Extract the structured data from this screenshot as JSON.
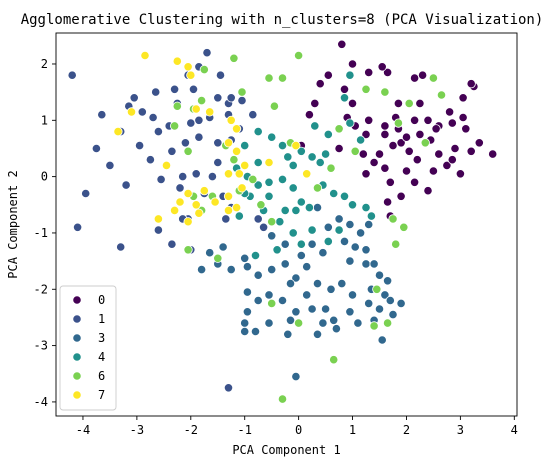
{
  "chart_data": {
    "type": "scatter",
    "title": "Agglomerative Clustering with n_clusters=8 (PCA Visualization)",
    "xlabel": "PCA Component 1",
    "ylabel": "PCA Component 2",
    "xlim": [
      -4.5,
      4.05
    ],
    "ylim": [
      -4.25,
      2.55
    ],
    "xticks": [
      -4,
      -3,
      -2,
      -1,
      0,
      1,
      2,
      3,
      4
    ],
    "yticks": [
      -4,
      -3,
      -2,
      -1,
      0,
      1,
      2
    ],
    "grid": false,
    "legend_position": "lower-left",
    "series": [
      {
        "name": "0",
        "color": "#440154",
        "points": [
          [
            0.8,
            2.35
          ],
          [
            1.0,
            2.0
          ],
          [
            1.3,
            1.85
          ],
          [
            0.55,
            1.8
          ],
          [
            1.65,
            1.85
          ],
          [
            2.15,
            1.75
          ],
          [
            2.25,
            1.3
          ],
          [
            1.85,
            1.3
          ],
          [
            2.4,
            1.0
          ],
          [
            2.15,
            1.0
          ],
          [
            2.8,
            1.15
          ],
          [
            3.05,
            1.05
          ],
          [
            3.25,
            1.6
          ],
          [
            3.2,
            1.65
          ],
          [
            3.05,
            1.4
          ],
          [
            2.85,
            0.95
          ],
          [
            3.1,
            0.85
          ],
          [
            2.6,
            0.9
          ],
          [
            1.3,
            1.0
          ],
          [
            1.05,
            0.9
          ],
          [
            0.9,
            1.05
          ],
          [
            1.25,
            0.75
          ],
          [
            1.6,
            0.75
          ],
          [
            1.85,
            0.85
          ],
          [
            1.75,
            0.55
          ],
          [
            1.5,
            0.4
          ],
          [
            1.6,
            0.15
          ],
          [
            1.9,
            0.6
          ],
          [
            2.05,
            0.45
          ],
          [
            2.25,
            0.75
          ],
          [
            2.45,
            0.65
          ],
          [
            2.55,
            0.85
          ],
          [
            2.6,
            0.4
          ],
          [
            2.9,
            0.5
          ],
          [
            3.2,
            0.45
          ],
          [
            3.35,
            0.6
          ],
          [
            3.6,
            0.4
          ],
          [
            2.2,
            0.3
          ],
          [
            2.0,
            0.1
          ],
          [
            2.15,
            -0.1
          ],
          [
            1.9,
            -0.35
          ],
          [
            1.7,
            -0.1
          ],
          [
            1.65,
            -0.45
          ],
          [
            1.7,
            -0.7
          ],
          [
            2.4,
            -0.25
          ],
          [
            2.5,
            0.1
          ],
          [
            2.75,
            0.2
          ],
          [
            3.0,
            0.05
          ],
          [
            2.85,
            0.3
          ],
          [
            1.2,
            0.4
          ],
          [
            1.4,
            0.25
          ],
          [
            1.25,
            0.05
          ],
          [
            1.0,
            1.3
          ],
          [
            0.3,
            1.3
          ],
          [
            0.4,
            1.65
          ],
          [
            0.2,
            1.1
          ],
          [
            0.85,
            1.55
          ],
          [
            1.55,
            1.95
          ],
          [
            0.05,
            0.55
          ],
          [
            1.6,
            0.9
          ],
          [
            2.3,
            1.8
          ],
          [
            1.8,
            1.05
          ],
          [
            2.0,
            0.7
          ],
          [
            0.75,
            0.5
          ]
        ]
      },
      {
        "name": "1",
        "color": "#3b528b",
        "points": [
          [
            -4.2,
            1.8
          ],
          [
            -3.65,
            1.1
          ],
          [
            -3.75,
            0.5
          ],
          [
            -3.5,
            0.2
          ],
          [
            -3.2,
            -0.15
          ],
          [
            -3.3,
            0.8
          ],
          [
            -3.05,
            1.4
          ],
          [
            -2.9,
            1.15
          ],
          [
            -2.7,
            1.05
          ],
          [
            -2.65,
            1.5
          ],
          [
            -2.3,
            1.55
          ],
          [
            -2.25,
            1.3
          ],
          [
            -1.95,
            1.55
          ],
          [
            -1.85,
            1.95
          ],
          [
            -1.7,
            2.2
          ],
          [
            -1.45,
            1.8
          ],
          [
            -1.5,
            1.4
          ],
          [
            -1.3,
            1.3
          ],
          [
            -1.25,
            1.4
          ],
          [
            -1.05,
            1.35
          ],
          [
            -1.3,
            1.1
          ],
          [
            -1.65,
            1.05
          ],
          [
            -1.85,
            1.0
          ],
          [
            -2.0,
            0.95
          ],
          [
            -2.4,
            0.9
          ],
          [
            -2.6,
            0.8
          ],
          [
            -2.1,
            0.6
          ],
          [
            -1.85,
            0.7
          ],
          [
            -1.5,
            0.6
          ],
          [
            -1.25,
            0.65
          ],
          [
            -1.1,
            0.85
          ],
          [
            -1.5,
            0.25
          ],
          [
            -1.6,
            0.0
          ],
          [
            -1.9,
            0.05
          ],
          [
            -2.15,
            0.0
          ],
          [
            -2.2,
            -0.2
          ],
          [
            -2.55,
            -0.05
          ],
          [
            -2.75,
            0.3
          ],
          [
            -2.35,
            0.45
          ],
          [
            -1.75,
            -0.3
          ],
          [
            -1.4,
            -0.35
          ],
          [
            -1.25,
            -0.55
          ],
          [
            -1.35,
            -0.75
          ],
          [
            -2.05,
            -0.75
          ],
          [
            -2.15,
            -0.75
          ],
          [
            -2.6,
            -0.95
          ],
          [
            -3.3,
            -1.25
          ],
          [
            -2.35,
            -1.2
          ],
          [
            -2.0,
            -1.3
          ],
          [
            -4.1,
            -0.9
          ],
          [
            -3.95,
            -0.3
          ],
          [
            -1.3,
            -3.75
          ],
          [
            -0.65,
            -0.9
          ],
          [
            -0.75,
            -0.75
          ],
          [
            -1.55,
            -0.45
          ],
          [
            -2.05,
            1.8
          ],
          [
            -1.2,
            0.3
          ],
          [
            -0.85,
            1.1
          ],
          [
            -2.95,
            0.55
          ],
          [
            -3.15,
            1.25
          ]
        ]
      },
      {
        "name": "3",
        "color": "#31688e",
        "points": [
          [
            -1.0,
            -1.45
          ],
          [
            -0.5,
            -1.05
          ],
          [
            -0.25,
            -1.2
          ],
          [
            0.05,
            -1.4
          ],
          [
            0.25,
            -1.2
          ],
          [
            0.45,
            -1.35
          ],
          [
            0.85,
            -1.15
          ],
          [
            1.15,
            -1.0
          ],
          [
            1.3,
            -0.85
          ],
          [
            1.05,
            -1.25
          ],
          [
            0.95,
            -1.5
          ],
          [
            1.25,
            -1.55
          ],
          [
            1.4,
            -1.55
          ],
          [
            1.5,
            -1.75
          ],
          [
            1.65,
            -1.85
          ],
          [
            1.35,
            -2.0
          ],
          [
            1.6,
            -2.1
          ],
          [
            1.5,
            -2.35
          ],
          [
            1.3,
            -2.25
          ],
          [
            1.4,
            -2.55
          ],
          [
            1.75,
            -2.45
          ],
          [
            1.9,
            -2.25
          ],
          [
            1.7,
            -2.2
          ],
          [
            1.0,
            -2.1
          ],
          [
            0.8,
            -1.9
          ],
          [
            0.6,
            -2.0
          ],
          [
            0.35,
            -1.9
          ],
          [
            0.15,
            -2.1
          ],
          [
            -0.05,
            -1.8
          ],
          [
            -0.25,
            -1.55
          ],
          [
            -0.5,
            -1.65
          ],
          [
            -0.75,
            -1.75
          ],
          [
            -0.95,
            -1.6
          ],
          [
            -1.25,
            -1.65
          ],
          [
            -1.5,
            -1.55
          ],
          [
            -1.65,
            -1.35
          ],
          [
            -1.4,
            -1.25
          ],
          [
            -0.95,
            -2.05
          ],
          [
            -0.75,
            -2.2
          ],
          [
            -0.55,
            -2.1
          ],
          [
            -0.3,
            -2.2
          ],
          [
            -0.05,
            -2.4
          ],
          [
            0.25,
            -2.35
          ],
          [
            0.5,
            -2.35
          ],
          [
            0.65,
            -2.55
          ],
          [
            0.95,
            -2.4
          ],
          [
            1.1,
            -2.6
          ],
          [
            0.45,
            -2.6
          ],
          [
            -0.15,
            -2.55
          ],
          [
            -0.2,
            -2.8
          ],
          [
            -0.55,
            -2.6
          ],
          [
            -0.8,
            -2.75
          ],
          [
            -1.0,
            -2.6
          ],
          [
            -1.0,
            -2.75
          ],
          [
            -0.05,
            -3.55
          ],
          [
            -0.95,
            -2.4
          ],
          [
            -1.8,
            -1.65
          ],
          [
            0.35,
            -0.55
          ],
          [
            0.55,
            -0.9
          ],
          [
            0.75,
            -0.75
          ],
          [
            0.95,
            -0.85
          ],
          [
            1.25,
            -1.3
          ],
          [
            0.15,
            -1.6
          ],
          [
            -0.15,
            -1.9
          ],
          [
            0.35,
            -2.8
          ],
          [
            1.55,
            -2.9
          ],
          [
            0.7,
            -2.7
          ]
        ]
      },
      {
        "name": "4",
        "color": "#21918c",
        "points": [
          [
            0.3,
            0.9
          ],
          [
            0.55,
            0.75
          ],
          [
            0.5,
            0.4
          ],
          [
            0.4,
            0.25
          ],
          [
            0.25,
            0.35
          ],
          [
            0.05,
            0.45
          ],
          [
            -0.1,
            0.2
          ],
          [
            -0.2,
            0.35
          ],
          [
            -0.3,
            0.55
          ],
          [
            -0.5,
            0.7
          ],
          [
            -0.75,
            0.8
          ],
          [
            -1.0,
            0.55
          ],
          [
            -0.75,
            0.25
          ],
          [
            -0.95,
            0.0
          ],
          [
            -0.75,
            -0.15
          ],
          [
            -0.55,
            -0.1
          ],
          [
            -0.3,
            -0.05
          ],
          [
            -0.1,
            -0.2
          ],
          [
            0.05,
            -0.45
          ],
          [
            -0.05,
            -0.6
          ],
          [
            -0.25,
            -0.6
          ],
          [
            -0.55,
            -0.35
          ],
          [
            -0.9,
            -0.35
          ],
          [
            -0.4,
            -1.3
          ],
          [
            -0.8,
            -1.4
          ],
          [
            0.2,
            -0.55
          ],
          [
            0.45,
            -0.15
          ],
          [
            0.65,
            -0.3
          ],
          [
            0.85,
            -0.35
          ],
          [
            1.0,
            -0.5
          ],
          [
            1.25,
            -0.55
          ],
          [
            1.35,
            -0.7
          ],
          [
            0.75,
            -0.95
          ],
          [
            0.55,
            -1.15
          ],
          [
            0.25,
            -0.95
          ],
          [
            -0.1,
            -1.0
          ],
          [
            0.05,
            -1.2
          ],
          [
            0.95,
            1.8
          ],
          [
            0.85,
            1.4
          ],
          [
            0.95,
            0.95
          ],
          [
            1.15,
            0.65
          ],
          [
            -0.65,
            -0.6
          ],
          [
            -0.35,
            -0.8
          ],
          [
            -1.1,
            -0.7
          ],
          [
            -1.15,
            0.15
          ],
          [
            -1.0,
            -0.3
          ]
        ]
      },
      {
        "name": "6",
        "color": "#7ad151",
        "points": [
          [
            0.0,
            2.15
          ],
          [
            -1.2,
            2.1
          ],
          [
            -1.05,
            1.5
          ],
          [
            -1.2,
            0.3
          ],
          [
            -0.45,
            1.25
          ],
          [
            -2.05,
            0.45
          ],
          [
            -1.8,
            1.35
          ],
          [
            -1.95,
            1.2
          ],
          [
            -2.25,
            1.25
          ],
          [
            -1.35,
            0.55
          ],
          [
            -0.5,
            -0.8
          ],
          [
            -0.7,
            -0.5
          ],
          [
            0.6,
            0.15
          ],
          [
            0.35,
            -0.2
          ],
          [
            0.75,
            0.85
          ],
          [
            1.05,
            0.45
          ],
          [
            1.25,
            1.55
          ],
          [
            1.6,
            1.5
          ],
          [
            1.85,
            0.95
          ],
          [
            2.05,
            1.3
          ],
          [
            2.35,
            0.6
          ],
          [
            2.5,
            1.75
          ],
          [
            2.65,
            1.45
          ],
          [
            1.75,
            -0.75
          ],
          [
            1.95,
            -0.9
          ],
          [
            1.8,
            -1.2
          ],
          [
            1.65,
            -2.6
          ],
          [
            1.4,
            -2.65
          ],
          [
            1.45,
            -2.0
          ],
          [
            0.65,
            -3.25
          ],
          [
            0.0,
            -2.6
          ],
          [
            -0.3,
            -3.95
          ],
          [
            -0.5,
            -2.25
          ],
          [
            -1.5,
            -1.45
          ],
          [
            -2.05,
            -1.3
          ],
          [
            -1.95,
            -0.35
          ],
          [
            -1.8,
            -0.6
          ],
          [
            -1.6,
            -0.35
          ],
          [
            -1.1,
            -0.25
          ],
          [
            -0.85,
            -0.05
          ],
          [
            -0.55,
            1.75
          ],
          [
            -0.3,
            1.75
          ],
          [
            -0.15,
            0.6
          ],
          [
            -2.3,
            0.9
          ],
          [
            -1.75,
            1.9
          ]
        ]
      },
      {
        "name": "7",
        "color": "#fde725",
        "points": [
          [
            -2.85,
            2.15
          ],
          [
            -2.25,
            2.05
          ],
          [
            -2.05,
            1.95
          ],
          [
            -2.0,
            1.8
          ],
          [
            -1.9,
            1.2
          ],
          [
            -1.65,
            1.15
          ],
          [
            -1.25,
            1.0
          ],
          [
            -1.15,
            0.85
          ],
          [
            -1.3,
            0.6
          ],
          [
            -1.15,
            0.45
          ],
          [
            -1.0,
            0.2
          ],
          [
            -1.3,
            0.05
          ],
          [
            -1.1,
            0.05
          ],
          [
            -1.05,
            -0.2
          ],
          [
            -1.3,
            -0.35
          ],
          [
            -1.15,
            -0.55
          ],
          [
            -1.3,
            -0.6
          ],
          [
            -1.55,
            -0.45
          ],
          [
            -1.75,
            -0.25
          ],
          [
            -1.9,
            -0.5
          ],
          [
            -2.05,
            -0.3
          ],
          [
            -1.85,
            -0.65
          ],
          [
            -2.2,
            -0.45
          ],
          [
            -2.3,
            -0.6
          ],
          [
            -2.05,
            -0.8
          ],
          [
            -2.45,
            0.2
          ],
          [
            -3.1,
            1.15
          ],
          [
            -3.35,
            0.8
          ],
          [
            -2.6,
            -0.75
          ],
          [
            -0.55,
            0.25
          ],
          [
            0.15,
            0.05
          ],
          [
            -0.05,
            0.55
          ]
        ]
      }
    ]
  }
}
